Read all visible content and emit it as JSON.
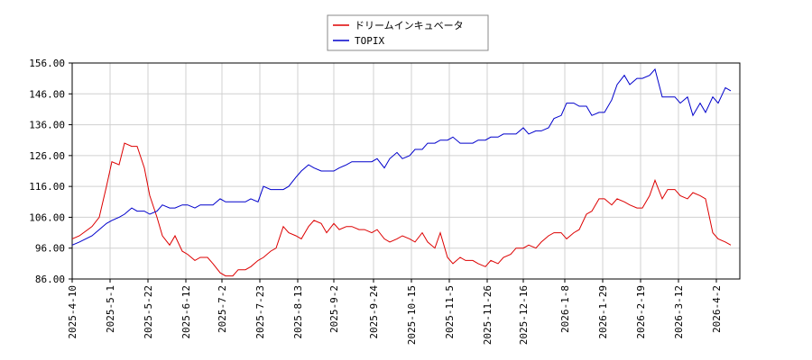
{
  "chart_data": {
    "type": "line",
    "x": [
      "2025-04-10",
      "2025-04-14",
      "2025-04-21",
      "2025-04-25",
      "2025-04-29",
      "2025-05-02",
      "2025-05-06",
      "2025-05-09",
      "2025-05-13",
      "2025-05-16",
      "2025-05-20",
      "2025-05-23",
      "2025-05-27",
      "2025-05-30",
      "2025-06-03",
      "2025-06-06",
      "2025-06-10",
      "2025-06-13",
      "2025-06-17",
      "2025-06-20",
      "2025-06-24",
      "2025-06-27",
      "2025-07-01",
      "2025-07-04",
      "2025-07-08",
      "2025-07-11",
      "2025-07-15",
      "2025-07-18",
      "2025-07-22",
      "2025-07-25",
      "2025-07-29",
      "2025-08-01",
      "2025-08-05",
      "2025-08-08",
      "2025-08-12",
      "2025-08-15",
      "2025-08-19",
      "2025-08-22",
      "2025-08-26",
      "2025-08-29",
      "2025-09-02",
      "2025-09-05",
      "2025-09-09",
      "2025-09-12",
      "2025-09-16",
      "2025-09-19",
      "2025-09-23",
      "2025-09-26",
      "2025-09-30",
      "2025-10-03",
      "2025-10-07",
      "2025-10-10",
      "2025-10-14",
      "2025-10-17",
      "2025-10-21",
      "2025-10-24",
      "2025-10-28",
      "2025-10-31",
      "2025-11-04",
      "2025-11-07",
      "2025-11-11",
      "2025-11-14",
      "2025-11-18",
      "2025-11-21",
      "2025-11-25",
      "2025-11-28",
      "2025-12-02",
      "2025-12-05",
      "2025-12-09",
      "2025-12-12",
      "2025-12-16",
      "2025-12-19",
      "2025-12-23",
      "2025-12-26",
      "2025-12-30",
      "2026-01-02",
      "2026-01-06",
      "2026-01-09",
      "2026-01-13",
      "2026-01-16",
      "2026-01-20",
      "2026-01-23",
      "2026-01-27",
      "2026-01-30",
      "2026-02-03",
      "2026-02-06",
      "2026-02-10",
      "2026-02-13",
      "2026-02-17",
      "2026-02-20",
      "2026-02-24",
      "2026-02-27",
      "2026-03-03",
      "2026-03-06",
      "2026-03-10",
      "2026-03-13",
      "2026-03-17",
      "2026-03-20",
      "2026-03-24",
      "2026-03-27",
      "2026-03-31",
      "2026-04-03",
      "2026-04-07",
      "2026-04-10"
    ],
    "series": [
      {
        "name": "ドリームインキュベータ",
        "color": "#dd0000",
        "values": [
          99,
          100,
          103,
          106,
          116,
          124,
          123,
          130,
          129,
          129,
          122,
          113,
          106,
          100,
          97,
          100,
          95,
          94,
          92,
          93,
          93,
          91,
          88,
          87,
          87,
          89,
          89,
          90,
          92,
          93,
          95,
          96,
          103,
          101,
          100,
          99,
          103,
          105,
          104,
          101,
          104,
          102,
          103,
          103,
          102,
          102,
          101,
          102,
          99,
          98,
          99,
          100,
          99,
          98,
          101,
          98,
          96,
          101,
          93,
          91,
          93,
          92,
          92,
          91,
          90,
          92,
          91,
          93,
          94,
          96,
          96,
          97,
          96,
          98,
          100,
          101,
          101,
          99,
          101,
          102,
          107,
          108,
          112,
          112,
          110,
          112,
          111,
          110,
          109,
          109,
          113,
          118,
          112,
          115,
          115,
          113,
          112,
          114,
          113,
          112,
          101,
          99,
          98,
          97
        ]
      },
      {
        "name": "TOPIX",
        "color": "#0000cc",
        "values": [
          97,
          98,
          100,
          102,
          104,
          105,
          106,
          107,
          109,
          108,
          108,
          107,
          108,
          110,
          109,
          109,
          110,
          110,
          109,
          110,
          110,
          110,
          112,
          111,
          111,
          111,
          111,
          112,
          111,
          116,
          115,
          115,
          115,
          116,
          119,
          121,
          123,
          122,
          121,
          121,
          121,
          122,
          123,
          124,
          124,
          124,
          124,
          125,
          122,
          125,
          127,
          125,
          126,
          128,
          128,
          130,
          130,
          131,
          131,
          132,
          130,
          130,
          130,
          131,
          131,
          132,
          132,
          133,
          133,
          133,
          135,
          133,
          134,
          134,
          135,
          138,
          139,
          143,
          143,
          142,
          142,
          139,
          140,
          140,
          144,
          149,
          152,
          149,
          151,
          151,
          152,
          154,
          145,
          145,
          145,
          143,
          145,
          139,
          143,
          140,
          145,
          143,
          148,
          147
        ]
      }
    ],
    "xlim": [
      "2025-04-10",
      "2026-04-15"
    ],
    "xticks": [
      {
        "value": "2025-04-10",
        "label": "2025-4-10"
      },
      {
        "value": "2025-05-01",
        "label": "2025-5-1"
      },
      {
        "value": "2025-05-22",
        "label": "2025-5-22"
      },
      {
        "value": "2025-06-12",
        "label": "2025-6-12"
      },
      {
        "value": "2025-07-02",
        "label": "2025-7-2"
      },
      {
        "value": "2025-07-23",
        "label": "2025-7-23"
      },
      {
        "value": "2025-08-13",
        "label": "2025-8-13"
      },
      {
        "value": "2025-09-02",
        "label": "2025-9-2"
      },
      {
        "value": "2025-09-24",
        "label": "2025-9-24"
      },
      {
        "value": "2025-10-15",
        "label": "2025-10-15"
      },
      {
        "value": "2025-11-05",
        "label": "2025-11-5"
      },
      {
        "value": "2025-11-26",
        "label": "2025-11-26"
      },
      {
        "value": "2025-12-16",
        "label": "2025-12-16"
      },
      {
        "value": "2026-01-08",
        "label": "2026-1-8"
      },
      {
        "value": "2026-01-29",
        "label": "2026-1-29"
      },
      {
        "value": "2026-02-19",
        "label": "2026-2-19"
      },
      {
        "value": "2026-03-12",
        "label": "2026-3-12"
      },
      {
        "value": "2026-04-02",
        "label": "2026-4-2"
      }
    ],
    "ylim": [
      86,
      156
    ],
    "yticks": [
      {
        "value": 86,
        "label": "86.00"
      },
      {
        "value": 96,
        "label": "96.00"
      },
      {
        "value": 106,
        "label": "106.00"
      },
      {
        "value": 116,
        "label": "116.00"
      },
      {
        "value": 126,
        "label": "126.00"
      },
      {
        "value": 136,
        "label": "136.00"
      },
      {
        "value": 146,
        "label": "146.00"
      },
      {
        "value": 156,
        "label": "156.00"
      }
    ],
    "grid": true,
    "legend": "top"
  }
}
